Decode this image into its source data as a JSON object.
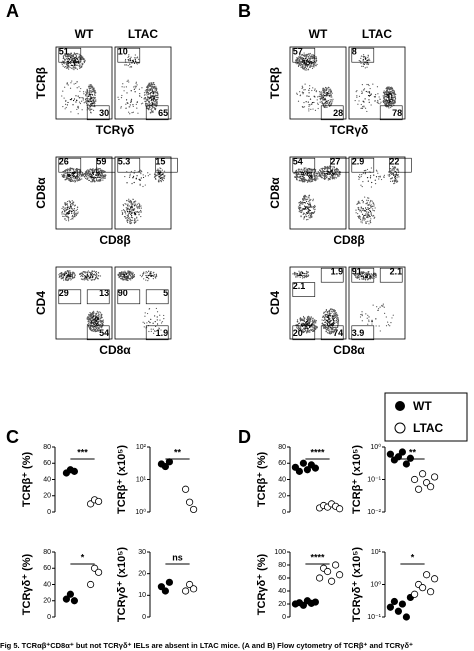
{
  "flow_panels": [
    {
      "label": "A",
      "columns": [
        "WT",
        "LTAC"
      ],
      "rows": [
        {
          "y_label": "TCRβ",
          "x_label": "TCRγδ",
          "gates": [
            [
              "51",
              "30"
            ],
            [
              "10",
              "65"
            ]
          ]
        },
        {
          "y_label": "CD8α",
          "x_label": "CD8β",
          "gates": [
            [
              "26",
              "59"
            ],
            [
              "5.3",
              "15"
            ]
          ]
        },
        {
          "y_label": "CD4",
          "x_label": "CD8α",
          "gates": [
            [
              "29",
              "13",
              "54"
            ],
            [
              "90",
              "5",
              "1.9"
            ]
          ]
        }
      ]
    },
    {
      "label": "B",
      "columns": [
        "WT",
        "LTAC"
      ],
      "rows": [
        {
          "y_label": "TCRβ",
          "x_label": "TCRγδ",
          "gates": [
            [
              "57",
              "28"
            ],
            [
              "8",
              "78"
            ]
          ]
        },
        {
          "y_label": "CD8α",
          "x_label": "CD8β",
          "gates": [
            [
              "54",
              "27"
            ],
            [
              "2.9",
              "22"
            ]
          ]
        },
        {
          "y_label": "CD4",
          "x_label": "CD8α",
          "gates": [
            [
              "2.1",
              "1.9",
              "20",
              "74"
            ],
            [
              "91",
              "2.1",
              "3.9"
            ]
          ]
        }
      ]
    }
  ],
  "quant_panels": [
    "C",
    "D"
  ],
  "legend": [
    "WT",
    "LTAC"
  ],
  "chart_data": [
    {
      "type": "dot",
      "y_label": "TCRβ⁺ (%)",
      "annotation": "***",
      "ylim": [
        0,
        80
      ],
      "yticks": [
        0,
        20,
        40,
        60,
        80
      ],
      "series": [
        {
          "name": "WT",
          "color": "#000000",
          "values": [
            48,
            52,
            50
          ]
        },
        {
          "name": "LTAC",
          "color": "#ffffff",
          "values": [
            10,
            15,
            13
          ]
        }
      ]
    },
    {
      "type": "dot",
      "y_label": "TCRβ⁺ (x10⁵)",
      "annotation": "**",
      "log": true,
      "ylim": [
        1,
        100
      ],
      "yticks": [
        {
          "value": 1,
          "label": "10⁰"
        },
        {
          "value": 10,
          "label": "10¹"
        },
        {
          "value": 100,
          "label": "10²"
        }
      ],
      "series": [
        {
          "name": "WT",
          "color": "#000000",
          "values": [
            30,
            25,
            35
          ]
        },
        {
          "name": "LTAC",
          "color": "#ffffff",
          "values": [
            5,
            2,
            1.2
          ]
        }
      ]
    },
    {
      "type": "dot",
      "y_label": "TCRγδ⁺ (%)",
      "annotation": "*",
      "ylim": [
        0,
        80
      ],
      "yticks": [
        0,
        20,
        40,
        60,
        80
      ],
      "series": [
        {
          "name": "WT",
          "color": "#000000",
          "values": [
            22,
            28,
            20
          ]
        },
        {
          "name": "LTAC",
          "color": "#ffffff",
          "values": [
            40,
            60,
            55
          ]
        }
      ]
    },
    {
      "type": "dot",
      "y_label": "TCRγδ⁺ (x10⁵)",
      "annotation": "ns",
      "ylim": [
        0,
        30
      ],
      "yticks": [
        0,
        10,
        20,
        30
      ],
      "series": [
        {
          "name": "WT",
          "color": "#000000",
          "values": [
            14,
            12,
            16
          ]
        },
        {
          "name": "LTAC",
          "color": "#ffffff",
          "values": [
            12,
            15,
            13
          ]
        }
      ]
    },
    {
      "type": "dot",
      "y_label": "TCRβ⁺ (%)",
      "annotation": "****",
      "ylim": [
        0,
        80
      ],
      "yticks": [
        0,
        20,
        40,
        60,
        80
      ],
      "series": [
        {
          "name": "WT",
          "color": "#000000",
          "values": [
            55,
            50,
            60,
            52,
            58,
            54
          ]
        },
        {
          "name": "LTAC",
          "color": "#ffffff",
          "values": [
            5,
            8,
            6,
            10,
            7,
            4
          ]
        }
      ]
    },
    {
      "type": "dot",
      "y_label": "TCRβ⁺ (x10⁵)",
      "annotation": "**",
      "log": true,
      "ylim": [
        0.01,
        1
      ],
      "yticks": [
        {
          "value": 0.01,
          "label": "10⁻²"
        },
        {
          "value": 0.1,
          "label": "10⁻¹"
        },
        {
          "value": 1,
          "label": "10⁰"
        }
      ],
      "series": [
        {
          "name": "WT",
          "color": "#000000",
          "values": [
            0.6,
            0.4,
            0.5,
            0.7,
            0.3,
            0.45
          ]
        },
        {
          "name": "LTAC",
          "color": "#ffffff",
          "values": [
            0.1,
            0.05,
            0.15,
            0.08,
            0.06,
            0.12
          ]
        }
      ]
    },
    {
      "type": "dot",
      "y_label": "TCRγδ⁺ (%)",
      "annotation": "****",
      "ylim": [
        0,
        100
      ],
      "yticks": [
        0,
        20,
        40,
        60,
        80,
        100
      ],
      "series": [
        {
          "name": "WT",
          "color": "#000000",
          "values": [
            20,
            22,
            18,
            25,
            21,
            23
          ]
        },
        {
          "name": "LTAC",
          "color": "#ffffff",
          "values": [
            60,
            75,
            70,
            55,
            80,
            65
          ]
        }
      ]
    },
    {
      "type": "dot",
      "y_label": "TCRγδ⁺ (x10⁵)",
      "annotation": "*",
      "log": true,
      "ylim": [
        0.1,
        10
      ],
      "yticks": [
        {
          "value": 0.1,
          "label": "10⁻¹"
        },
        {
          "value": 1,
          "label": "10⁰"
        },
        {
          "value": 10,
          "label": "10¹"
        }
      ],
      "series": [
        {
          "name": "WT",
          "color": "#000000",
          "values": [
            0.2,
            0.3,
            0.15,
            0.25,
            0.1,
            0.4
          ]
        },
        {
          "name": "LTAC",
          "color": "#ffffff",
          "values": [
            0.5,
            1,
            0.8,
            2,
            0.6,
            1.5
          ]
        }
      ]
    }
  ],
  "caption": "Fig 5. TCRαβ⁺CD8α⁺ but not TCRγδ⁺ IELs are absent in LTAC mice. (A and B) Flow cytometry of TCRβ⁺ and TCRγδ⁺"
}
